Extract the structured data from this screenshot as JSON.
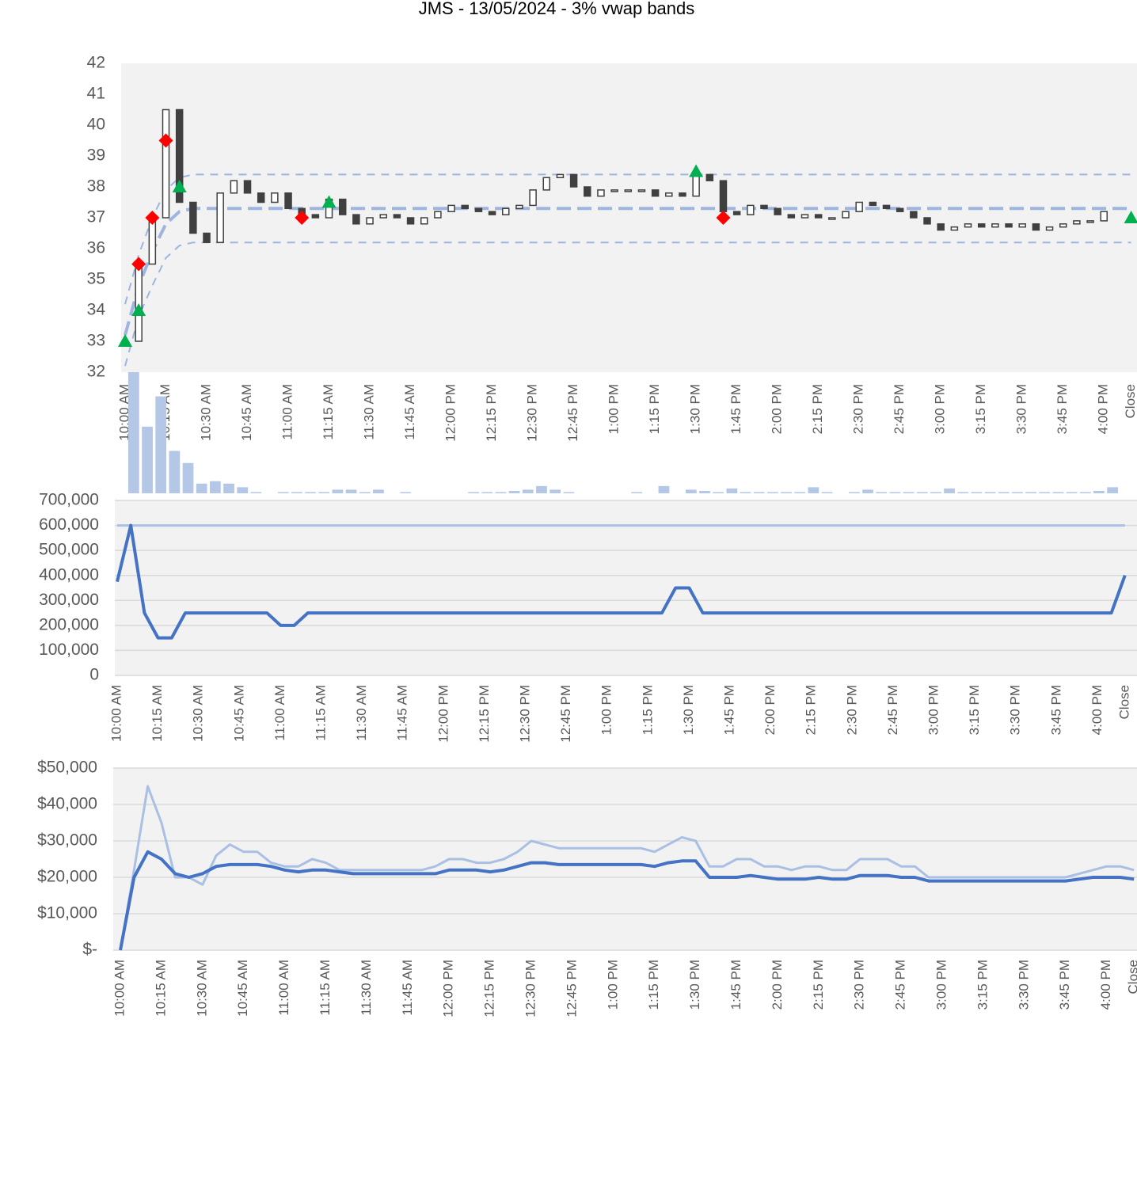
{
  "chart_data": [
    {
      "type": "candlestick",
      "title": "JMS - 13/05/2024 - 3% vwap bands",
      "categories": [
        "10:00 AM",
        null,
        null,
        "10:15 AM",
        null,
        null,
        "10:30 AM",
        null,
        null,
        "10:45 AM",
        null,
        null,
        "11:00 AM",
        null,
        null,
        "11:15 AM",
        null,
        null,
        "11:30 AM",
        null,
        null,
        "11:45 AM",
        null,
        null,
        "12:00 PM",
        null,
        null,
        "12:15 PM",
        null,
        null,
        "12:30 PM",
        null,
        null,
        "12:45 PM",
        null,
        null,
        "1:00 PM",
        null,
        null,
        "1:15 PM",
        null,
        null,
        "1:30 PM",
        null,
        null,
        "1:45 PM",
        null,
        null,
        "2:00 PM",
        null,
        null,
        "2:15 PM",
        null,
        null,
        "2:30 PM",
        null,
        null,
        "2:45 PM",
        null,
        null,
        "3:00 PM",
        null,
        null,
        "3:15 PM",
        null,
        null,
        "3:30 PM",
        null,
        null,
        "3:45 PM",
        null,
        null,
        "4:00 PM",
        null,
        "Close"
      ],
      "close": [
        33,
        35.5,
        37,
        40.5,
        37.5,
        36.5,
        36.2,
        37.8,
        38.2,
        37.8,
        37.5,
        37.8,
        37.3,
        37.1,
        37.0,
        37.6,
        37.1,
        36.8,
        37.0,
        37.1,
        37.0,
        36.8,
        37.0,
        37.2,
        37.4,
        37.3,
        37.2,
        37.1,
        37.3,
        37.4,
        37.9,
        38.3,
        38.4,
        38.0,
        37.7,
        37.9,
        37.9,
        37.9,
        37.9,
        37.7,
        37.8,
        37.7,
        38.4,
        38.2,
        37.2,
        37.1,
        37.4,
        37.3,
        37.1,
        37.0,
        37.1,
        37.0,
        37.0,
        37.2,
        37.5,
        37.4,
        37.3,
        37.2,
        37.0,
        36.8,
        36.6,
        36.7,
        36.8,
        36.7,
        36.8,
        36.7,
        36.8,
        36.6,
        36.7,
        36.8,
        36.9,
        36.9,
        37.2,
        null,
        null
      ],
      "vwap": [
        33.2,
        34.8,
        35.9,
        36.8,
        37.2,
        37.3,
        37.3,
        37.3,
        37.3,
        37.3,
        37.3,
        37.3,
        37.3,
        37.3,
        37.3,
        37.3,
        37.3,
        37.3,
        37.3,
        37.3,
        37.3,
        37.3,
        37.3,
        37.3,
        37.3,
        37.3,
        37.3,
        37.3,
        37.3,
        37.3,
        37.3,
        37.3,
        37.3,
        37.3,
        37.3,
        37.3,
        37.3,
        37.3,
        37.3,
        37.3,
        37.3,
        37.3,
        37.3,
        37.3,
        37.3,
        37.3,
        37.3,
        37.3,
        37.3,
        37.3,
        37.3,
        37.3,
        37.3,
        37.3,
        37.3,
        37.3,
        37.3,
        37.3,
        37.3,
        37.3,
        37.3,
        37.3,
        37.3,
        37.3,
        37.3,
        37.3,
        37.3,
        37.3,
        37.3,
        37.3,
        37.3,
        37.3,
        37.3,
        37.3,
        37.3
      ],
      "upper_band": [
        34.2,
        35.8,
        37.0,
        37.9,
        38.3,
        38.4,
        38.4,
        38.4,
        38.4,
        38.4,
        38.4,
        38.4,
        38.4,
        38.4,
        38.4,
        38.4,
        38.4,
        38.4,
        38.4,
        38.4,
        38.4,
        38.4,
        38.4,
        38.4,
        38.4,
        38.4,
        38.4,
        38.4,
        38.4,
        38.4,
        38.4,
        38.4,
        38.4,
        38.4,
        38.4,
        38.4,
        38.4,
        38.4,
        38.4,
        38.4,
        38.4,
        38.4,
        38.4,
        38.4,
        38.4,
        38.4,
        38.4,
        38.4,
        38.4,
        38.4,
        38.4,
        38.4,
        38.4,
        38.4,
        38.4,
        38.4,
        38.4,
        38.4,
        38.4,
        38.4,
        38.4,
        38.4,
        38.4,
        38.4,
        38.4,
        38.4,
        38.4,
        38.4,
        38.4,
        38.4,
        38.4,
        38.4,
        38.4,
        38.4,
        38.4
      ],
      "lower_band": [
        32.2,
        33.8,
        34.8,
        35.7,
        36.1,
        36.2,
        36.2,
        36.2,
        36.2,
        36.2,
        36.2,
        36.2,
        36.2,
        36.2,
        36.2,
        36.2,
        36.2,
        36.2,
        36.2,
        36.2,
        36.2,
        36.2,
        36.2,
        36.2,
        36.2,
        36.2,
        36.2,
        36.2,
        36.2,
        36.2,
        36.2,
        36.2,
        36.2,
        36.2,
        36.2,
        36.2,
        36.2,
        36.2,
        36.2,
        36.2,
        36.2,
        36.2,
        36.2,
        36.2,
        36.2,
        36.2,
        36.2,
        36.2,
        36.2,
        36.2,
        36.2,
        36.2,
        36.2,
        36.2,
        36.2,
        36.2,
        36.2,
        36.2,
        36.2,
        36.2,
        36.2,
        36.2,
        36.2,
        36.2,
        36.2,
        36.2,
        36.2,
        36.2,
        36.2,
        36.2,
        36.2,
        36.2,
        36.2,
        36.2,
        36.2
      ],
      "buys": [
        33,
        34,
        null,
        null,
        38,
        null,
        null,
        null,
        null,
        null,
        null,
        null,
        null,
        null,
        null,
        37.5,
        null,
        null,
        null,
        null,
        null,
        null,
        null,
        null,
        null,
        null,
        null,
        null,
        null,
        null,
        null,
        null,
        null,
        null,
        null,
        null,
        null,
        null,
        null,
        null,
        null,
        null,
        38.5,
        null,
        null,
        null,
        null,
        null,
        null,
        null,
        null,
        null,
        null,
        null,
        null,
        null,
        null,
        null,
        null,
        null,
        null,
        null,
        null,
        null,
        null,
        null,
        null,
        null,
        null,
        null,
        null,
        null,
        null,
        null,
        37
      ],
      "sells": [
        null,
        35.5,
        37,
        39.5,
        null,
        null,
        null,
        null,
        null,
        null,
        null,
        null,
        null,
        37,
        null,
        null,
        null,
        null,
        null,
        null,
        null,
        null,
        null,
        null,
        null,
        null,
        null,
        null,
        null,
        null,
        null,
        null,
        null,
        null,
        null,
        null,
        null,
        null,
        null,
        null,
        null,
        null,
        null,
        null,
        37,
        null,
        null,
        null,
        null,
        null,
        null,
        null,
        null,
        null,
        null,
        null,
        null,
        null,
        null,
        null,
        null,
        null,
        null,
        null,
        null,
        null,
        null,
        null,
        null,
        null,
        null,
        null,
        null,
        null,
        null
      ],
      "volume": [
        100,
        55,
        80,
        35,
        25,
        8,
        10,
        8,
        5,
        1,
        0,
        1,
        1,
        1,
        1,
        3,
        3,
        1,
        3,
        0,
        1,
        0,
        0,
        0,
        0,
        1,
        1,
        1,
        2,
        3,
        6,
        3,
        1,
        0,
        0,
        0,
        0,
        1,
        0,
        6,
        0,
        3,
        2,
        1,
        4,
        1,
        1,
        1,
        1,
        1,
        5,
        1,
        0,
        1,
        3,
        1,
        1,
        1,
        1,
        1,
        4,
        1,
        1,
        1,
        1,
        1,
        1,
        1,
        1,
        1,
        1,
        2,
        5,
        null,
        null
      ],
      "ylim": [
        32,
        42
      ],
      "yticks": [
        32,
        33,
        34,
        35,
        36,
        37,
        38,
        39,
        40,
        41,
        42
      ],
      "y2lim": [
        0,
        100
      ],
      "colors": {
        "candle": "#404040",
        "band": "#9db5e0",
        "buy": "#00b050",
        "sell": "#ff0000",
        "volume": "#b4c7e7"
      }
    },
    {
      "type": "line",
      "categories": [
        "10:00 AM",
        null,
        null,
        "10:15 AM",
        null,
        null,
        "10:30 AM",
        null,
        null,
        "10:45 AM",
        null,
        null,
        "11:00 AM",
        null,
        null,
        "11:15 AM",
        null,
        null,
        "11:30 AM",
        null,
        null,
        "11:45 AM",
        null,
        null,
        "12:00 PM",
        null,
        null,
        "12:15 PM",
        null,
        null,
        "12:30 PM",
        null,
        null,
        "12:45 PM",
        null,
        null,
        "1:00 PM",
        null,
        null,
        "1:15 PM",
        null,
        null,
        "1:30 PM",
        null,
        null,
        "1:45 PM",
        null,
        null,
        "2:00 PM",
        null,
        null,
        "2:15 PM",
        null,
        null,
        "2:30 PM",
        null,
        null,
        "2:45 PM",
        null,
        null,
        "3:00 PM",
        null,
        null,
        "3:15 PM",
        null,
        null,
        "3:30 PM",
        null,
        null,
        "3:45 PM",
        null,
        null,
        "4:00 PM",
        null,
        "Close"
      ],
      "series": [
        {
          "color": "#a9bfe4",
          "values": [
            600000,
            600000,
            600000,
            600000,
            600000,
            600000,
            600000,
            600000,
            600000,
            600000,
            600000,
            600000,
            600000,
            600000,
            600000,
            600000,
            600000,
            600000,
            600000,
            600000,
            600000,
            600000,
            600000,
            600000,
            600000,
            600000,
            600000,
            600000,
            600000,
            600000,
            600000,
            600000,
            600000,
            600000,
            600000,
            600000,
            600000,
            600000,
            600000,
            600000,
            600000,
            600000,
            600000,
            600000,
            600000,
            600000,
            600000,
            600000,
            600000,
            600000,
            600000,
            600000,
            600000,
            600000,
            600000,
            600000,
            600000,
            600000,
            600000,
            600000,
            600000,
            600000,
            600000,
            600000,
            600000,
            600000,
            600000,
            600000,
            600000,
            600000,
            600000,
            600000,
            600000,
            600000,
            600000
          ]
        },
        {
          "color": "#4472c4",
          "values": [
            375000,
            600000,
            250000,
            150000,
            150000,
            250000,
            250000,
            250000,
            250000,
            250000,
            250000,
            250000,
            200000,
            200000,
            250000,
            250000,
            250000,
            250000,
            250000,
            250000,
            250000,
            250000,
            250000,
            250000,
            250000,
            250000,
            250000,
            250000,
            250000,
            250000,
            250000,
            250000,
            250000,
            250000,
            250000,
            250000,
            250000,
            250000,
            250000,
            250000,
            250000,
            350000,
            350000,
            250000,
            250000,
            250000,
            250000,
            250000,
            250000,
            250000,
            250000,
            250000,
            250000,
            250000,
            250000,
            250000,
            250000,
            250000,
            250000,
            250000,
            250000,
            250000,
            250000,
            250000,
            250000,
            250000,
            250000,
            250000,
            250000,
            250000,
            250000,
            250000,
            250000,
            250000,
            400000
          ]
        }
      ],
      "ylim": [
        0,
        700000
      ],
      "yticks": [
        0,
        {
          "value": 100000,
          "label": "100,000"
        },
        {
          "value": 200000,
          "label": "200,000"
        },
        {
          "value": 300000,
          "label": "300,000"
        },
        {
          "value": 400000,
          "label": "400,000"
        },
        {
          "value": 500000,
          "label": "500,000"
        },
        {
          "value": 600000,
          "label": "600,000"
        },
        {
          "value": 700000,
          "label": "700,000"
        }
      ],
      "grid": true
    },
    {
      "type": "line",
      "categories": [
        "10:00 AM",
        null,
        null,
        "10:15 AM",
        null,
        null,
        "10:30 AM",
        null,
        null,
        "10:45 AM",
        null,
        null,
        "11:00 AM",
        null,
        null,
        "11:15 AM",
        null,
        null,
        "11:30 AM",
        null,
        null,
        "11:45 AM",
        null,
        null,
        "12:00 PM",
        null,
        null,
        "12:15 PM",
        null,
        null,
        "12:30 PM",
        null,
        null,
        "12:45 PM",
        null,
        null,
        "1:00 PM",
        null,
        null,
        "1:15 PM",
        null,
        null,
        "1:30 PM",
        null,
        null,
        "1:45 PM",
        null,
        null,
        "2:00 PM",
        null,
        null,
        "2:15 PM",
        null,
        null,
        "2:30 PM",
        null,
        null,
        "2:45 PM",
        null,
        null,
        "3:00 PM",
        null,
        null,
        "3:15 PM",
        null,
        null,
        "3:30 PM",
        null,
        null,
        "3:45 PM",
        null,
        null,
        "4:00 PM",
        null,
        "Close"
      ],
      "series": [
        {
          "color": "#a9bfe4",
          "values": [
            0,
            22000,
            45000,
            35000,
            20000,
            20000,
            18000,
            26000,
            29000,
            27000,
            27000,
            24000,
            23000,
            23000,
            25000,
            24000,
            22000,
            22000,
            22000,
            22000,
            22000,
            22000,
            22000,
            23000,
            25000,
            25000,
            24000,
            24000,
            25000,
            27000,
            30000,
            29000,
            28000,
            28000,
            28000,
            28000,
            28000,
            28000,
            28000,
            27000,
            29000,
            31000,
            30000,
            23000,
            23000,
            25000,
            25000,
            23000,
            23000,
            22000,
            23000,
            23000,
            22000,
            22000,
            25000,
            25000,
            25000,
            23000,
            23000,
            20000,
            20000,
            20000,
            20000,
            20000,
            20000,
            20000,
            20000,
            20000,
            20000,
            20000,
            21000,
            22000,
            23000,
            23000,
            22000
          ]
        },
        {
          "color": "#4472c4",
          "values": [
            0,
            20000,
            27000,
            25000,
            21000,
            20000,
            21000,
            23000,
            23500,
            23500,
            23500,
            23000,
            22000,
            21500,
            22000,
            22000,
            21500,
            21000,
            21000,
            21000,
            21000,
            21000,
            21000,
            21000,
            22000,
            22000,
            22000,
            21500,
            22000,
            23000,
            24000,
            24000,
            23500,
            23500,
            23500,
            23500,
            23500,
            23500,
            23500,
            23000,
            24000,
            24500,
            24500,
            20000,
            20000,
            20000,
            20500,
            20000,
            19500,
            19500,
            19500,
            20000,
            19500,
            19500,
            20500,
            20500,
            20500,
            20000,
            20000,
            19000,
            19000,
            19000,
            19000,
            19000,
            19000,
            19000,
            19000,
            19000,
            19000,
            19000,
            19500,
            20000,
            20000,
            20000,
            19500
          ]
        }
      ],
      "ylim": [
        0,
        50000
      ],
      "yticks": [
        {
          "value": 0,
          "label": "$-"
        },
        {
          "value": 10000,
          "label": "$10,000"
        },
        {
          "value": 20000,
          "label": "$20,000"
        },
        {
          "value": 30000,
          "label": "$30,000"
        },
        {
          "value": 40000,
          "label": "$40,000"
        },
        {
          "value": 50000,
          "label": "$50,000"
        }
      ],
      "grid": true
    }
  ]
}
